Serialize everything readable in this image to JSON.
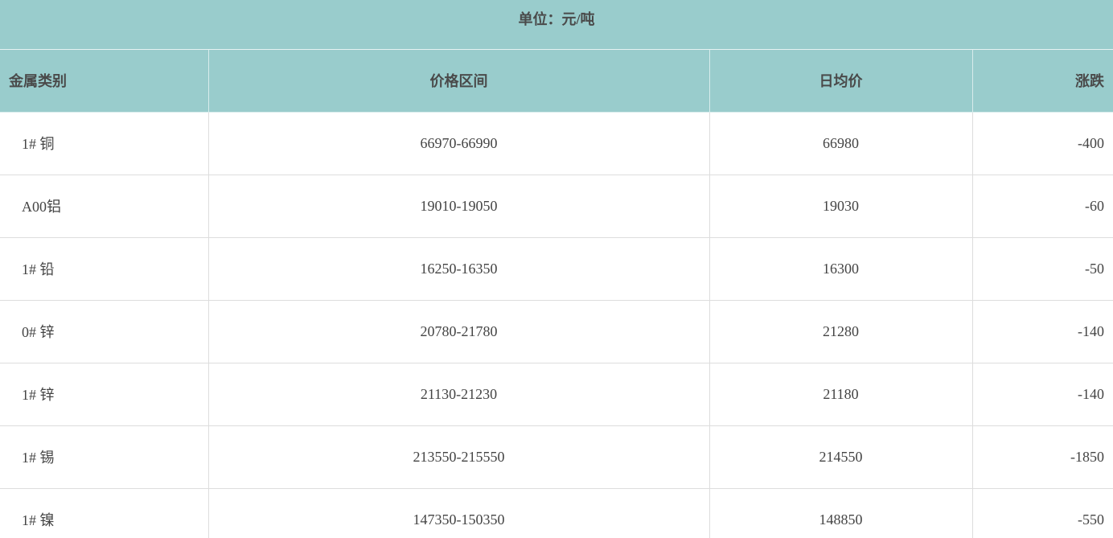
{
  "unit_label": "单位：元/吨",
  "columns": [
    "金属类别",
    "价格区间",
    "日均价",
    "涨跌"
  ],
  "rows": [
    {
      "metal": "1# 铜",
      "range": "66970-66990",
      "avg": "66980",
      "change": "-400"
    },
    {
      "metal": "A00铝",
      "range": "19010-19050",
      "avg": "19030",
      "change": "-60"
    },
    {
      "metal": "1# 铅",
      "range": "16250-16350",
      "avg": "16300",
      "change": "-50"
    },
    {
      "metal": "0# 锌",
      "range": "20780-21780",
      "avg": "21280",
      "change": "-140"
    },
    {
      "metal": "1# 锌",
      "range": "21130-21230",
      "avg": "21180",
      "change": "-140"
    },
    {
      "metal": "1# 锡",
      "range": "213550-215550",
      "avg": "214550",
      "change": "-1850"
    },
    {
      "metal": "1# 镍",
      "range": "147350-150350",
      "avg": "148850",
      "change": "-550"
    }
  ],
  "colors": {
    "header_bg": "#99cccc",
    "border": "#dddddd"
  }
}
